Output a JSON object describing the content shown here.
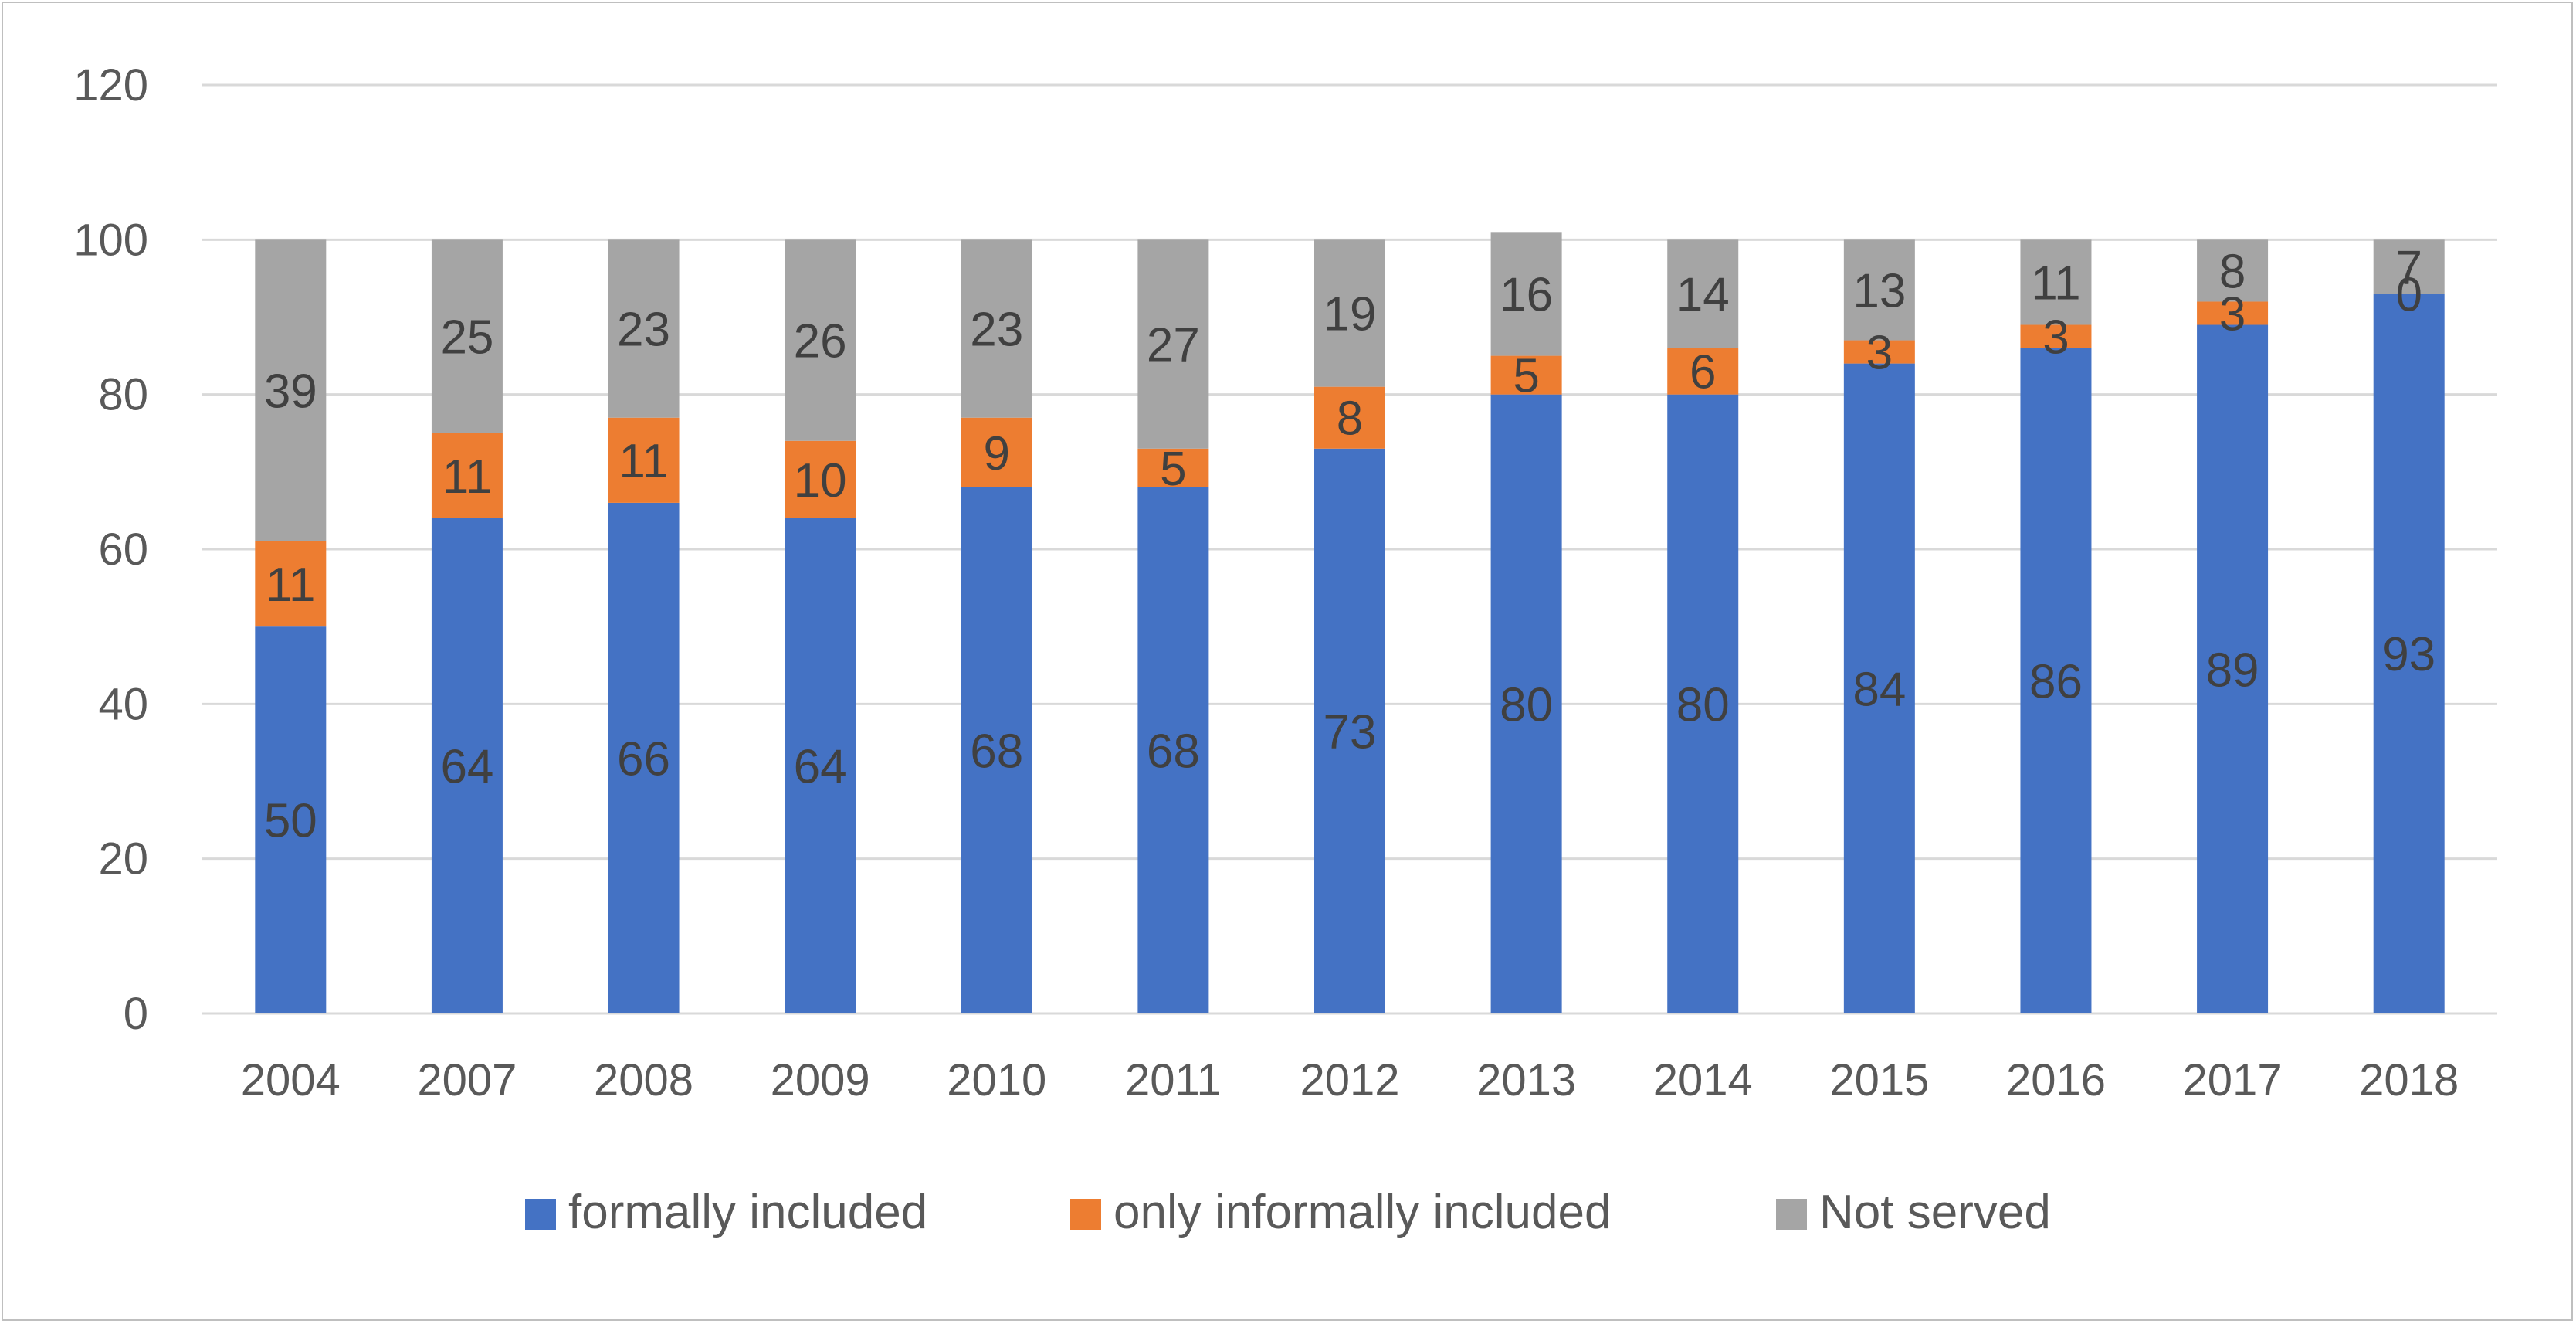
{
  "chart_data": {
    "type": "bar",
    "stacked": true,
    "title": "",
    "xlabel": "",
    "ylabel": "",
    "ylim": [
      0,
      120
    ],
    "yticks": [
      "0",
      "20",
      "40",
      "60",
      "80",
      "100",
      "120"
    ],
    "grid": true,
    "legend_position": "bottom",
    "categories": [
      "2004",
      "2007",
      "2008",
      "2009",
      "2010",
      "2011",
      "2012",
      "2013",
      "2014",
      "2015",
      "2016",
      "2017",
      "2018"
    ],
    "series": [
      {
        "name": "formally included",
        "color": "#4472C4",
        "values": [
          50,
          64,
          66,
          64,
          68,
          68,
          73,
          80,
          80,
          84,
          86,
          89,
          93
        ],
        "labels": [
          "50",
          "64",
          "66",
          "64",
          "68",
          "68",
          "73",
          "80",
          "80",
          "84",
          "86",
          "89",
          "93"
        ]
      },
      {
        "name": "only informally included",
        "color": "#ED7D31",
        "values": [
          11,
          11,
          11,
          10,
          9,
          5,
          8,
          5,
          6,
          3,
          3,
          3,
          0
        ],
        "labels": [
          "11",
          "11",
          "11",
          "10",
          "9",
          "5",
          "8",
          "5",
          "6",
          "3",
          "3",
          "3",
          "0"
        ]
      },
      {
        "name": "Not served",
        "color": "#A5A5A5",
        "values": [
          39,
          25,
          23,
          26,
          23,
          27,
          19,
          16,
          14,
          13,
          11,
          8,
          7
        ],
        "labels": [
          "39",
          "25",
          "23",
          "26",
          "23",
          "27",
          "19",
          "16",
          "14",
          "13",
          "11",
          "8",
          "7"
        ]
      }
    ]
  }
}
